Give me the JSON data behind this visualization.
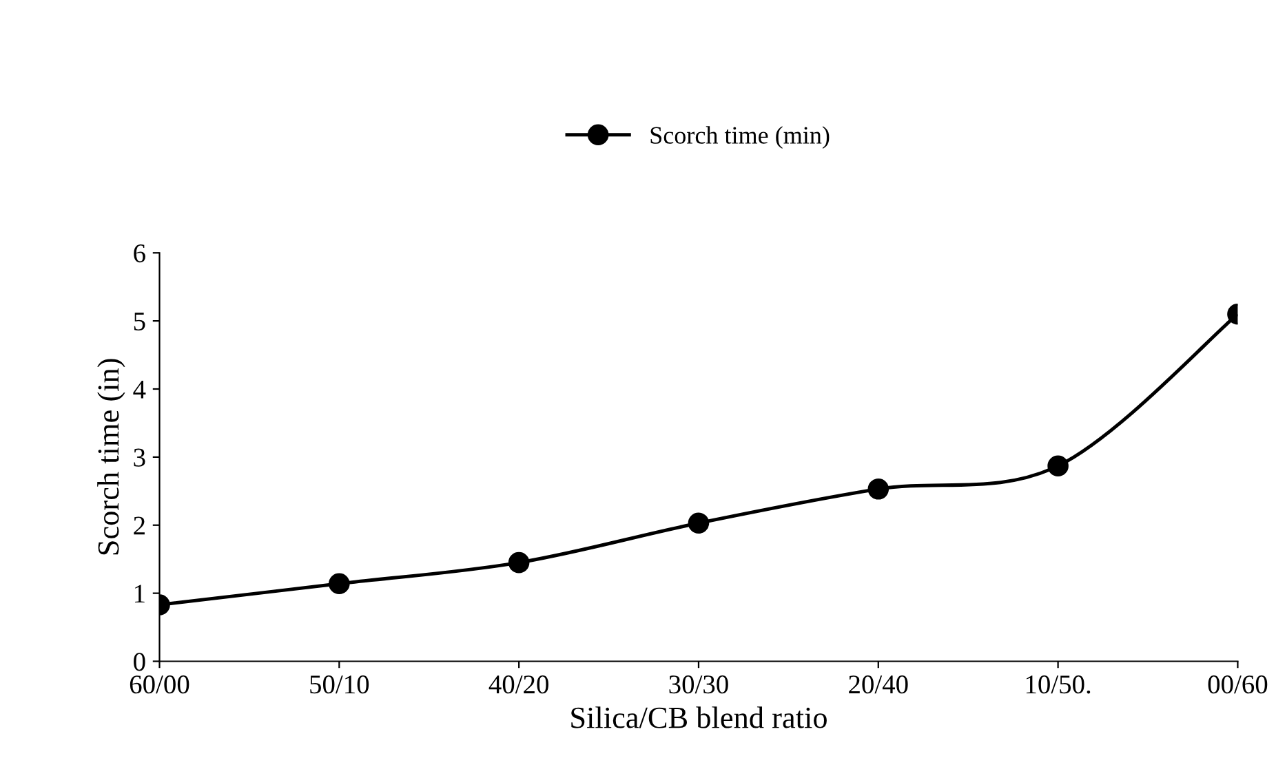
{
  "chart_data": {
    "type": "line",
    "xlabel": "Silica/CB blend ratio",
    "ylabel": "Scorch time (in)",
    "categories": [
      "60/00",
      "50/10",
      "40/20",
      "30/30",
      "20/40",
      "10/50.",
      "00/60"
    ],
    "series": [
      {
        "name": "Scorch time (min)",
        "color": "#000000",
        "values": [
          0.83,
          1.14,
          1.45,
          2.03,
          2.53,
          2.87,
          5.1
        ]
      }
    ],
    "ylim": [
      0,
      6
    ],
    "yticks": [
      0,
      1,
      2,
      3,
      4,
      5,
      6
    ],
    "grid": false,
    "legend": "top",
    "marker": "circle",
    "line_style": "solid"
  }
}
